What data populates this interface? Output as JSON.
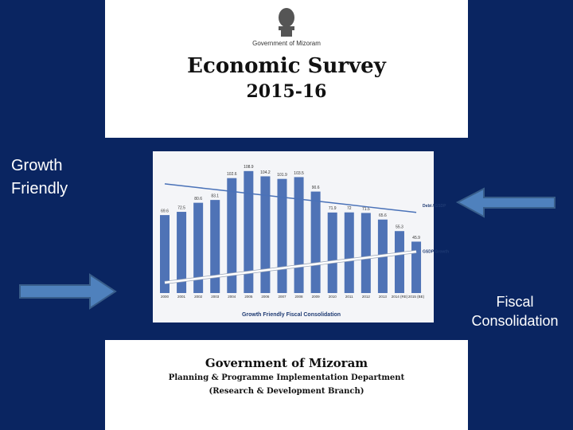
{
  "header": {
    "emblem_caption": "Government of Mizoram",
    "title": "Economic Survey",
    "year": "2015-16"
  },
  "left_label": "Growth Friendly",
  "right_label": "Fiscal Consolidation",
  "chart_data": {
    "type": "bar",
    "caption": "Growth Friendly Fiscal Consolidation",
    "categories": [
      "2000",
      "2001",
      "2002",
      "2003",
      "2004",
      "2005",
      "2006",
      "2007",
      "2008",
      "2009",
      "2010",
      "2011",
      "2012",
      "2013",
      "2014 (RE)",
      "2015 (BE)"
    ],
    "values": [
      69.6,
      72.5,
      80.6,
      83.1,
      102.6,
      108.9,
      104.2,
      101.9,
      103.5,
      90.6,
      71.9,
      72.0,
      71.5,
      65.6,
      55.3,
      45.9
    ],
    "color": "#4f73b6",
    "ylim": [
      0,
      123
    ],
    "series": [
      {
        "name": "Debt / GSDP",
        "color": "#4a72b8",
        "values": [
          97.5,
          95.8,
          94.1,
          92.4,
          90.7,
          89.0,
          87.3,
          85.6,
          83.9,
          82.2,
          80.5,
          78.8,
          77.1,
          75.4,
          73.7,
          72.0
        ]
      },
      {
        "name": "GSDP Growth",
        "color": "#ffffff",
        "values": [
          9.3,
          11.1,
          13.0,
          14.8,
          16.7,
          18.5,
          20.4,
          22.2,
          24.1,
          25.9,
          27.8,
          29.6,
          31.5,
          33.3,
          35.2,
          37.0
        ]
      }
    ]
  },
  "footer": {
    "title": "Government of Mizoram",
    "department": "Planning & Programme Implementation Department",
    "branch": "(Research & Development Branch)"
  }
}
